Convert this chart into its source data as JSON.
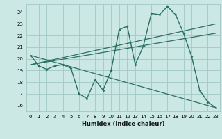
{
  "xlabel": "Humidex (Indice chaleur)",
  "background_color": "#cce8e4",
  "grid_color": "#a0c8c4",
  "line_color": "#2a7060",
  "xlim": [
    -0.5,
    23.5
  ],
  "ylim": [
    15.5,
    24.7
  ],
  "yticks": [
    16,
    17,
    18,
    19,
    20,
    21,
    22,
    23,
    24
  ],
  "xticks": [
    0,
    1,
    2,
    3,
    4,
    5,
    6,
    7,
    8,
    9,
    10,
    11,
    12,
    13,
    14,
    15,
    16,
    17,
    18,
    19,
    20,
    21,
    22,
    23
  ],
  "line1_x": [
    0,
    1,
    2,
    3,
    4,
    5,
    6,
    7,
    8,
    9,
    10,
    11,
    12,
    13,
    14,
    15,
    16,
    17,
    18,
    19,
    20,
    21,
    22,
    23
  ],
  "line1_y": [
    20.3,
    19.4,
    19.1,
    19.4,
    19.5,
    19.2,
    17.0,
    16.6,
    18.2,
    17.3,
    19.0,
    22.5,
    22.8,
    19.5,
    21.1,
    23.9,
    23.8,
    24.5,
    23.8,
    22.2,
    20.2,
    17.3,
    16.3,
    15.8
  ],
  "line2_x": [
    0,
    23
  ],
  "line2_y": [
    20.3,
    15.8
  ],
  "line3_x": [
    0,
    23
  ],
  "line3_y": [
    19.5,
    23.0
  ],
  "line4_x": [
    0,
    23
  ],
  "line4_y": [
    19.5,
    22.2
  ]
}
